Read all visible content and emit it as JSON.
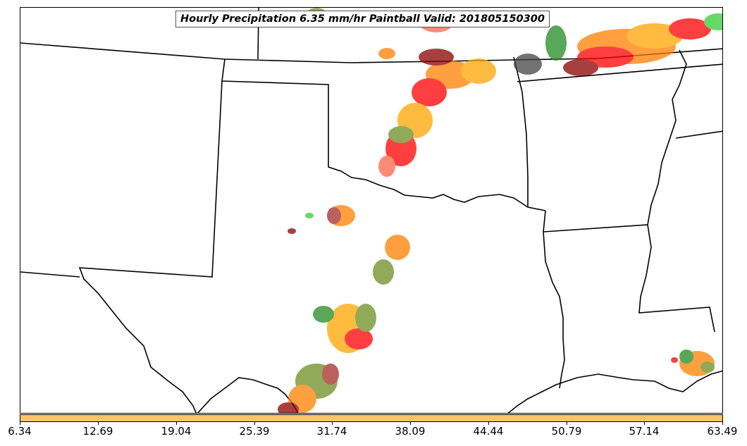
{
  "map": {
    "title": "Hourly Precipitation 6.35 mm/hr Paintball Valid: 201805150300",
    "colors": {
      "boundary": "#000000",
      "colorbar_fill": "#fbc46a",
      "members": [
        "#ff0000",
        "#ff7f00",
        "#ffa500",
        "#8b0000",
        "#228b22",
        "#32cd32",
        "#6b8e23",
        "#444444",
        "#ff6347",
        "#a52a2a"
      ]
    }
  },
  "colorbar": {
    "ticks": [
      "6.34",
      "12.69",
      "19.04",
      "25.39",
      "31.74",
      "38.09",
      "44.44",
      "50.79",
      "57.14",
      "63.49"
    ]
  }
}
